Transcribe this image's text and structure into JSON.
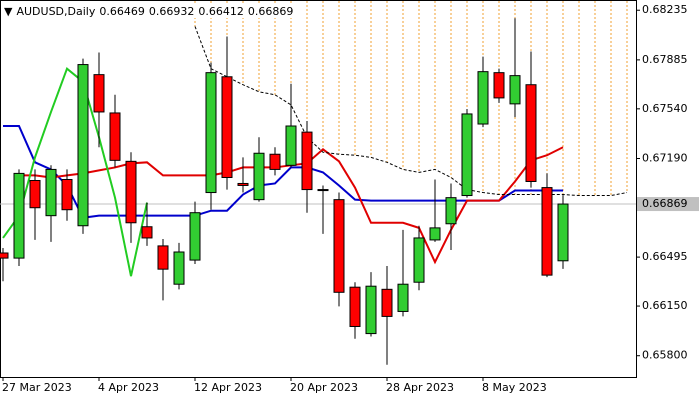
{
  "chart_data": {
    "type": "candlestick",
    "title": "AUDUSD,Daily",
    "header_values": [
      0.66469,
      0.66932,
      0.66412,
      0.66869
    ],
    "categories": [
      "27 Mar 2023",
      null,
      null,
      null,
      null,
      null,
      "4 Apr 2023",
      null,
      null,
      null,
      null,
      null,
      "12 Apr 2023",
      null,
      null,
      null,
      null,
      null,
      "20 Apr 2023",
      null,
      null,
      null,
      null,
      null,
      "28 Apr 2023",
      null,
      null,
      null,
      null,
      null,
      "8 May 2023",
      null,
      null,
      null,
      null,
      null,
      null,
      null,
      null,
      null
    ],
    "open": [
      0.66524,
      0.66488,
      0.67035,
      0.66787,
      0.67042,
      0.66716,
      0.67781,
      0.67511,
      0.6717,
      0.66709,
      0.66574,
      0.66304,
      0.66474,
      0.6695,
      0.67766,
      0.67014,
      0.669,
      0.6722,
      0.67142,
      0.67376,
      0.66971,
      0.669,
      0.66283,
      0.65956,
      0.66268,
      0.66112,
      0.66318,
      0.66616,
      0.6673,
      0.66929,
      0.67433,
      0.67795,
      0.67575,
      0.6771,
      0.66985,
      0.66469,
      null,
      null,
      null,
      null
    ],
    "high": [
      0.66559,
      0.67113,
      0.67113,
      0.67142,
      0.67113,
      0.67894,
      0.67937,
      0.67639,
      0.67234,
      0.66879,
      0.66623,
      0.66595,
      0.66886,
      0.67866,
      0.6805,
      0.67198,
      0.6734,
      0.67269,
      0.67717,
      0.67454,
      0.67,
      0.6695,
      0.66318,
      0.66389,
      0.66432,
      0.66687,
      0.66716,
      0.67042,
      0.67014,
      0.67539,
      0.67908,
      0.67823,
      0.68178,
      0.67944,
      0.67085,
      0.66932,
      null,
      null,
      null,
      null
    ],
    "low": [
      0.66325,
      0.66432,
      0.66616,
      0.66602,
      0.66751,
      0.66659,
      0.67269,
      0.67127,
      0.66595,
      0.66574,
      0.6619,
      0.66268,
      0.66446,
      0.66829,
      0.66971,
      0.6695,
      0.66886,
      0.67071,
      0.67127,
      0.66808,
      0.66659,
      0.66148,
      0.6592,
      0.65935,
      0.65736,
      0.66077,
      0.66261,
      0.66602,
      0.66545,
      0.66914,
      0.67411,
      0.67582,
      0.67482,
      0.66985,
      0.66354,
      0.66412,
      null,
      null,
      null,
      null
    ],
    "close": [
      0.66488,
      0.67085,
      0.66843,
      0.67113,
      0.66829,
      0.67852,
      0.67518,
      0.67177,
      0.66737,
      0.6663,
      0.6641,
      0.66531,
      0.66808,
      0.67795,
      0.67056,
      0.67,
      0.67227,
      0.67113,
      0.67419,
      0.66971,
      0.66964,
      0.66247,
      0.66006,
      0.6629,
      0.66077,
      0.66304,
      0.6663,
      0.66701,
      0.66914,
      0.67504,
      0.67802,
      0.67617,
      0.67774,
      0.67028,
      0.66368,
      0.66869,
      null,
      null,
      null,
      null
    ],
    "up_color": "#32cd32",
    "down_color": "#ff0000",
    "lines": [
      {
        "color": "#0000cc",
        "values": [
          0.67419,
          0.67419,
          0.67163,
          0.67113,
          0.67,
          0.66772,
          0.66787,
          0.66787,
          0.66787,
          0.66787,
          0.66787,
          0.66787,
          0.66787,
          0.66822,
          0.66822,
          0.66936,
          0.67,
          0.67014,
          0.67127,
          0.67127,
          0.67092,
          0.67,
          0.669,
          0.66893,
          0.66893,
          0.66893,
          0.66893,
          0.66893,
          0.66893,
          0.66893,
          0.66893,
          0.66893,
          0.66964,
          0.66964,
          0.66964,
          0.66964,
          null,
          null,
          null,
          null
        ]
      },
      {
        "color": "#e00000",
        "values": [
          null,
          0.67071,
          0.67071,
          0.67056,
          0.67071,
          0.67085,
          0.67106,
          0.67127,
          0.67156,
          0.67163,
          0.67071,
          0.67071,
          0.67071,
          0.67071,
          0.67092,
          0.67127,
          0.67127,
          0.67127,
          0.67142,
          0.67156,
          0.67255,
          0.6717,
          0.66985,
          0.66737,
          0.66737,
          0.66737,
          0.66701,
          0.6646,
          0.66687,
          0.66893,
          0.66893,
          0.66893,
          0.67028,
          0.67177,
          0.67213,
          0.67269,
          null,
          null,
          null,
          null
        ]
      },
      {
        "color": "#22cc22",
        "values": [
          0.6663,
          0.66787,
          0.67198,
          0.67518,
          0.67823,
          0.67731,
          0.6734,
          0.66914,
          0.66361,
          0.66879,
          null,
          null,
          null,
          null,
          null,
          null,
          null,
          null,
          null,
          null,
          null,
          null,
          null,
          null,
          null,
          null,
          null,
          null,
          null,
          null,
          null,
          null,
          null,
          null,
          null,
          null,
          null,
          null,
          null,
          null
        ]
      },
      {
        "color": "#000000",
        "dashed": true,
        "cloud": true,
        "values": [
          null,
          null,
          null,
          null,
          null,
          null,
          null,
          null,
          null,
          null,
          null,
          null,
          0.68121,
          0.67823,
          0.67766,
          0.6771,
          0.6766,
          0.67639,
          0.67568,
          0.6734,
          0.67234,
          0.6722,
          0.67213,
          0.67198,
          0.67163,
          0.67113,
          0.67092,
          0.67113,
          0.67056,
          0.66971,
          0.6695,
          0.66936,
          0.66936,
          0.66936,
          0.66936,
          0.66936,
          0.66929,
          0.66929,
          0.66929,
          0.6695
        ]
      }
    ],
    "cloud_color": "#f0a030",
    "last_price": 0.66869,
    "ylim": [
      0.6565,
      0.683
    ],
    "yticks": [
      0.68235,
      0.67885,
      {
        "value": 0.6754,
        "label": "0.67540"
      },
      {
        "value": 0.6719,
        "label": "0.67190"
      },
      0.66495,
      {
        "value": 0.6615,
        "label": "0.66150"
      },
      {
        "value": 0.658,
        "label": "0.65800"
      }
    ]
  }
}
